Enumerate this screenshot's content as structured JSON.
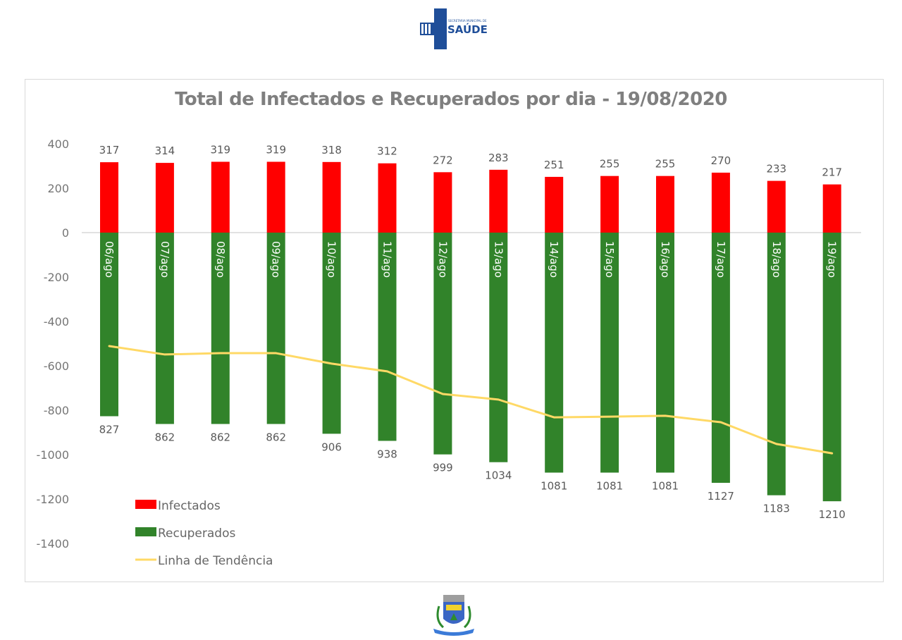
{
  "header": {
    "logo_top": {
      "small_text": "SECRETARIA MUNICIPAL DE",
      "big_text": "SAÚDE",
      "icon": "medical-cross-icon",
      "color": "#1f4e99"
    },
    "logo_bottom": {
      "icon": "municipal-coat-of-arms-icon"
    }
  },
  "chart_data": {
    "type": "bar",
    "title": "Total de Infectados e Recuperados por dia - 19/08/2020",
    "xlabel": "",
    "ylabel": "",
    "ylim": [
      -1400,
      400
    ],
    "yticks": [
      400,
      200,
      0,
      -200,
      -400,
      -600,
      -800,
      -1000,
      -1200,
      -1400
    ],
    "grid": false,
    "legend_position": "bottom-left",
    "categories": [
      "06/ago",
      "07/ago",
      "08/ago",
      "09/ago",
      "10/ago",
      "11/ago",
      "12/ago",
      "13/ago",
      "14/ago",
      "15/ago",
      "16/ago",
      "17/ago",
      "18/ago",
      "19/ago"
    ],
    "series": [
      {
        "name": "Infectados",
        "type": "bar",
        "color": "#ff0000",
        "values": [
          317,
          314,
          319,
          319,
          318,
          312,
          272,
          283,
          251,
          255,
          255,
          270,
          233,
          217
        ],
        "labels": [
          "317",
          "314",
          "319",
          "319",
          "318",
          "312",
          "272",
          "283",
          "251",
          "255",
          "255",
          "270",
          "233",
          "217"
        ]
      },
      {
        "name": "Recuperados",
        "type": "bar",
        "color": "#31832a",
        "values": [
          -827,
          -862,
          -862,
          -862,
          -906,
          -938,
          -999,
          -1034,
          -1081,
          -1081,
          -1081,
          -1127,
          -1183,
          -1210
        ],
        "labels": [
          "827",
          "862",
          "862",
          "862",
          "906",
          "938",
          "999",
          "1034",
          "1081",
          "1081",
          "1081",
          "1127",
          "1183",
          "1210"
        ]
      },
      {
        "name": "Linha de Tendência",
        "type": "line",
        "color": "#ffd966",
        "values": [
          -511,
          -549,
          -543,
          -543,
          -590,
          -625,
          -727,
          -752,
          -832,
          -829,
          -825,
          -854,
          -952,
          -994
        ]
      }
    ]
  }
}
